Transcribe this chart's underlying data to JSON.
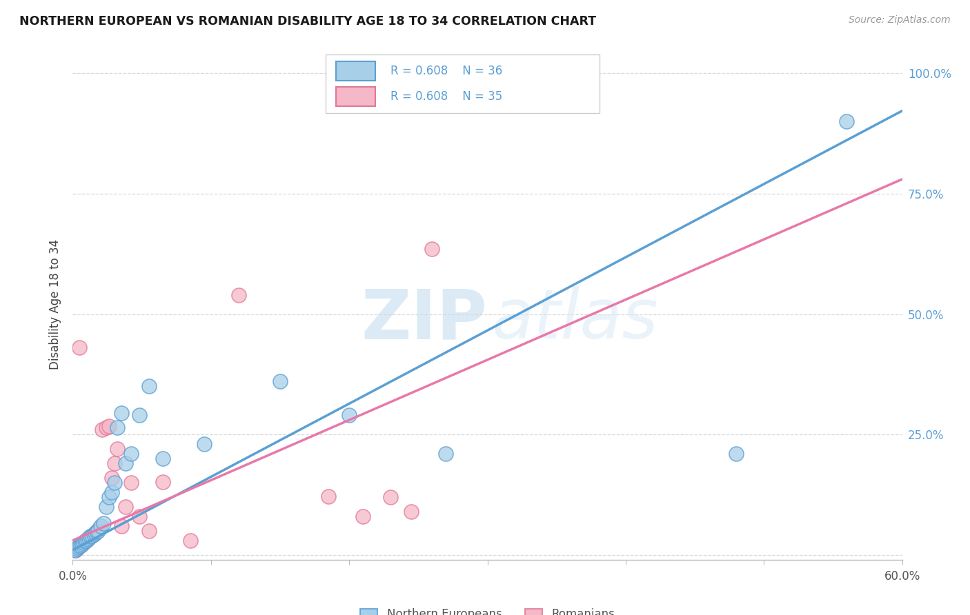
{
  "title": "NORTHERN EUROPEAN VS ROMANIAN DISABILITY AGE 18 TO 34 CORRELATION CHART",
  "source": "Source: ZipAtlas.com",
  "ylabel": "Disability Age 18 to 34",
  "xlim": [
    0.0,
    0.6
  ],
  "ylim": [
    -0.01,
    1.05
  ],
  "xticks": [
    0.0,
    0.1,
    0.2,
    0.3,
    0.4,
    0.5,
    0.6
  ],
  "xticklabels": [
    "0.0%",
    "",
    "",
    "",
    "",
    "",
    "60.0%"
  ],
  "yticks": [
    0.0,
    0.25,
    0.5,
    0.75,
    1.0
  ],
  "yticklabels_right": [
    "",
    "25.0%",
    "50.0%",
    "75.0%",
    "100.0%"
  ],
  "ne_color": "#a8cfe8",
  "ne_color_edge": "#5a9fd4",
  "ro_color": "#f5b8c8",
  "ro_color_edge": "#e07898",
  "ne_line_color": "#5a9fd4",
  "ro_line_color": "#e878a8",
  "ne_R": 0.608,
  "ne_N": 36,
  "ro_R": 0.608,
  "ro_N": 35,
  "watermark_zip": "ZIP",
  "watermark_atlas": "atlas",
  "background_color": "#ffffff",
  "grid_color": "#d8d8d8",
  "right_axis_color": "#5a9fd4",
  "ne_line_slope": 1.52,
  "ne_line_intercept": 0.01,
  "ro_line_slope": 1.25,
  "ro_line_intercept": 0.03,
  "northern_europeans_x": [
    0.002,
    0.003,
    0.004,
    0.005,
    0.006,
    0.007,
    0.008,
    0.009,
    0.01,
    0.011,
    0.012,
    0.013,
    0.014,
    0.015,
    0.016,
    0.017,
    0.018,
    0.02,
    0.022,
    0.024,
    0.026,
    0.028,
    0.03,
    0.032,
    0.035,
    0.038,
    0.042,
    0.048,
    0.055,
    0.065,
    0.095,
    0.15,
    0.2,
    0.27,
    0.48,
    0.56
  ],
  "northern_europeans_y": [
    0.01,
    0.012,
    0.015,
    0.018,
    0.02,
    0.022,
    0.025,
    0.028,
    0.03,
    0.032,
    0.035,
    0.038,
    0.04,
    0.042,
    0.045,
    0.048,
    0.05,
    0.06,
    0.065,
    0.1,
    0.12,
    0.13,
    0.15,
    0.265,
    0.295,
    0.19,
    0.21,
    0.29,
    0.35,
    0.2,
    0.23,
    0.36,
    0.29,
    0.21,
    0.21,
    0.9
  ],
  "romanians_x": [
    0.002,
    0.003,
    0.004,
    0.005,
    0.006,
    0.007,
    0.008,
    0.009,
    0.01,
    0.011,
    0.012,
    0.013,
    0.015,
    0.017,
    0.019,
    0.021,
    0.024,
    0.026,
    0.028,
    0.03,
    0.032,
    0.035,
    0.038,
    0.042,
    0.048,
    0.055,
    0.065,
    0.085,
    0.12,
    0.185,
    0.21,
    0.23,
    0.245,
    0.26,
    0.005
  ],
  "romanians_y": [
    0.01,
    0.012,
    0.015,
    0.018,
    0.02,
    0.022,
    0.025,
    0.028,
    0.03,
    0.032,
    0.035,
    0.038,
    0.042,
    0.048,
    0.055,
    0.26,
    0.265,
    0.268,
    0.16,
    0.19,
    0.22,
    0.06,
    0.1,
    0.15,
    0.08,
    0.05,
    0.152,
    0.03,
    0.54,
    0.122,
    0.08,
    0.12,
    0.09,
    0.635,
    0.43
  ]
}
